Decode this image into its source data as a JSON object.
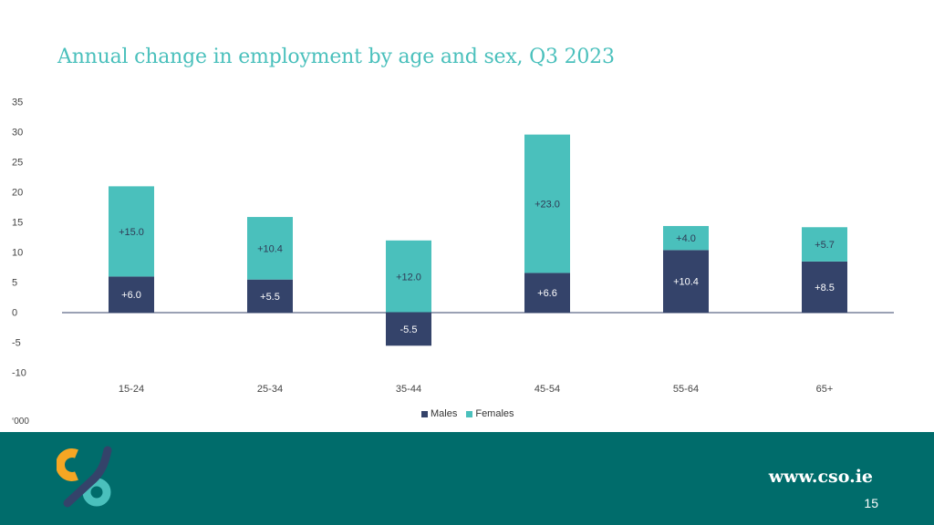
{
  "header": {
    "title": "Annual change in employment by age and sex, Q3 2023"
  },
  "chart_data": {
    "type": "bar",
    "stacked": true,
    "title": "Annual change in employment by age and sex, Q3 2023",
    "unit_label": "‘000",
    "categories": [
      "15-24",
      "25-34",
      "35-44",
      "45-54",
      "55-64",
      "65+"
    ],
    "series": [
      {
        "name": "Males",
        "values": [
          6.0,
          5.5,
          -5.5,
          6.6,
          10.4,
          8.5
        ],
        "labels": [
          "+6.0",
          "+5.5",
          "-5.5",
          "+6.6",
          "+10.4",
          "+8.5"
        ],
        "color": "#34436a"
      },
      {
        "name": "Females",
        "values": [
          15.0,
          10.4,
          12.0,
          23.0,
          4.0,
          5.7
        ],
        "labels": [
          "+15.0",
          "+10.4",
          "+12.0",
          "+23.0",
          "+4.0",
          "+5.7"
        ],
        "color": "#4ac0bc"
      }
    ],
    "ylim": [
      -10,
      35
    ],
    "yticks": [
      35,
      30,
      25,
      20,
      15,
      10,
      5,
      0,
      -5,
      -10
    ],
    "legend": "bottom-center"
  },
  "footer": {
    "website": "www.cso.ie",
    "page_number": "15"
  },
  "colors": {
    "title": "#4ac0bc",
    "footer_bg": "#006c6b",
    "logo_orange": "#f5a623",
    "logo_navy": "#34436a",
    "logo_teal": "#4ac0bc"
  }
}
